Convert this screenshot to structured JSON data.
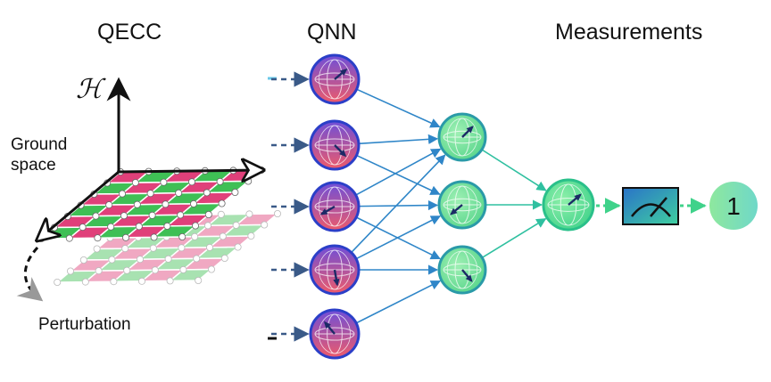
{
  "titles": {
    "qecc": "QECC",
    "qnn": "QNN",
    "measurements": "Measurements"
  },
  "qecc": {
    "hilbert_label": "ℋ",
    "ground_space_line1": "Ground",
    "ground_space_line2": "space",
    "perturbation_label": "Perturbation"
  },
  "result": {
    "value": "1"
  },
  "colors": {
    "pink": "#e0407a",
    "green": "#3fbf55",
    "input_node_top": "#6f4fd8",
    "input_node_bottom": "#ee5a6a",
    "hidden_node": "#7fe29a",
    "output_node": "#5de08c",
    "result_node": "#7de0b8",
    "arrow_blue": "#2f86c8",
    "arrow_teal": "#2fc0a0"
  },
  "icons": {
    "meter": "measurement-meter-icon",
    "bloch": "bloch-sphere-icon"
  }
}
